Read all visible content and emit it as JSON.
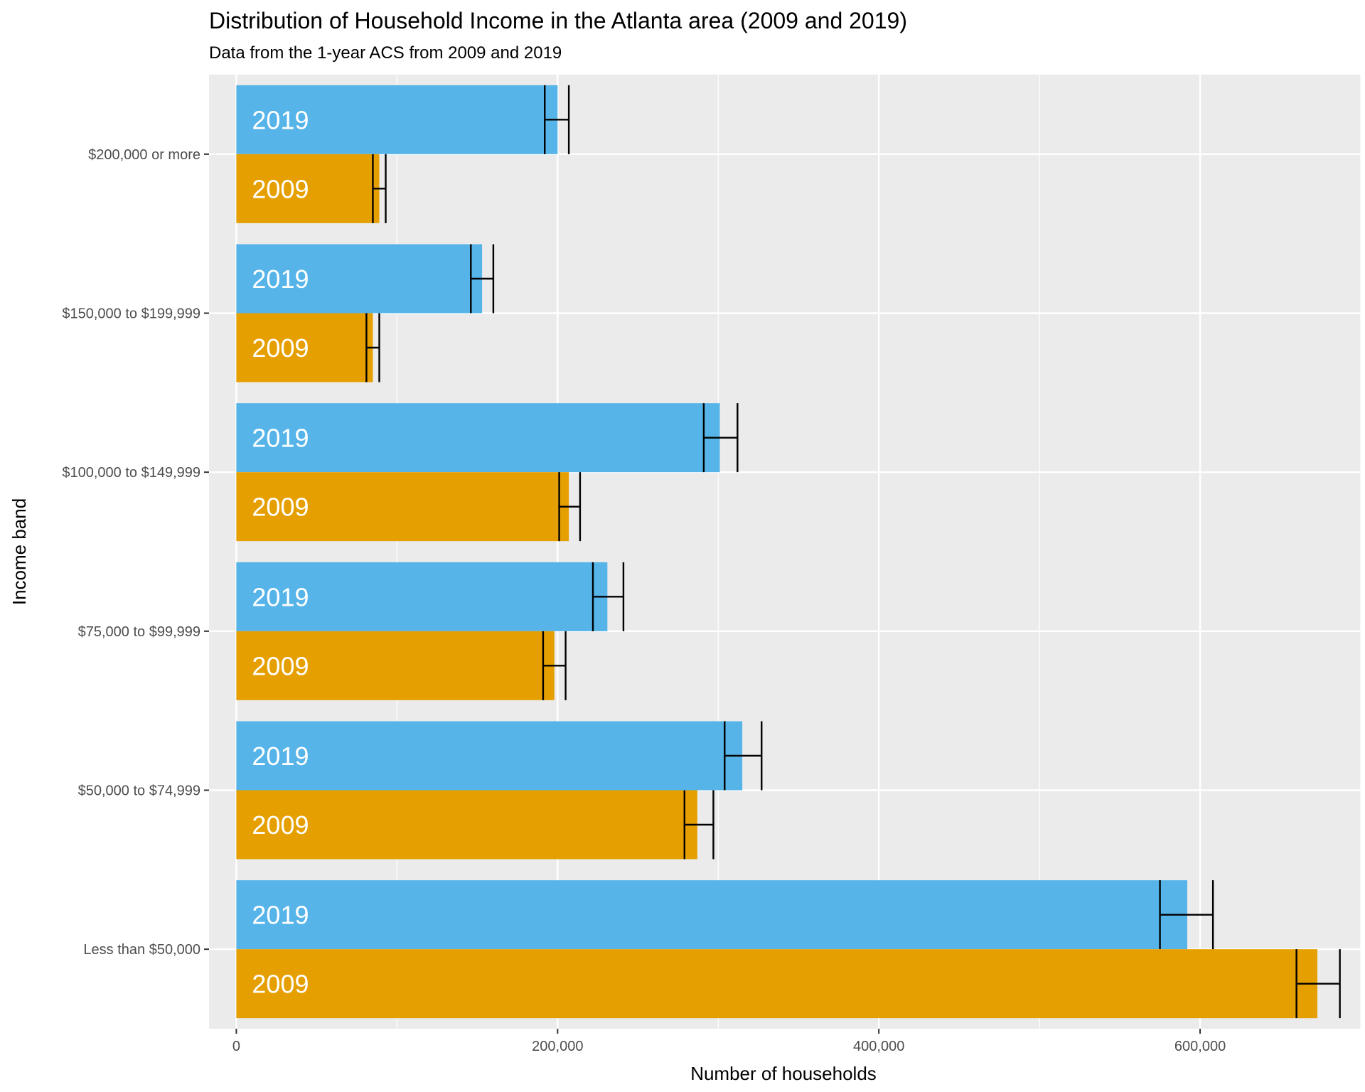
{
  "chart_data": {
    "type": "bar",
    "orientation": "horizontal",
    "title": "Distribution of Household Income in the Atlanta area (2009 and 2019)",
    "subtitle": "Data from the 1-year ACS from 2009 and 2019",
    "xlabel": "Number of households",
    "ylabel": "Income band",
    "xlim": [
      -17000,
      700000
    ],
    "x_ticks": [
      0,
      200000,
      400000,
      600000
    ],
    "x_tick_labels": [
      "0",
      "200,000",
      "400,000",
      "600,000"
    ],
    "categories": [
      "$200,000 or more",
      "$150,000 to $199,999",
      "$100,000 to $149,999",
      "$75,000 to $99,999",
      "$50,000 to $74,999",
      "Less than $50,000"
    ],
    "series": [
      {
        "name": "2019",
        "color": "#56B4E9",
        "values": [
          200000,
          153000,
          301000,
          231000,
          315000,
          592000
        ],
        "error_low": [
          192000,
          146000,
          291000,
          222000,
          304000,
          575000
        ],
        "error_high": [
          207000,
          160000,
          312000,
          241000,
          327000,
          608000
        ]
      },
      {
        "name": "2009",
        "color": "#E69F00",
        "values": [
          89000,
          85000,
          207000,
          198000,
          287000,
          673000
        ],
        "error_low": [
          85000,
          81000,
          201000,
          191000,
          279000,
          660000
        ],
        "error_high": [
          93000,
          89000,
          214000,
          205000,
          297000,
          687000
        ]
      }
    ],
    "grid": true,
    "legend": "none",
    "panel_background": "#EBEBEB",
    "grid_color": "#FFFFFF"
  }
}
